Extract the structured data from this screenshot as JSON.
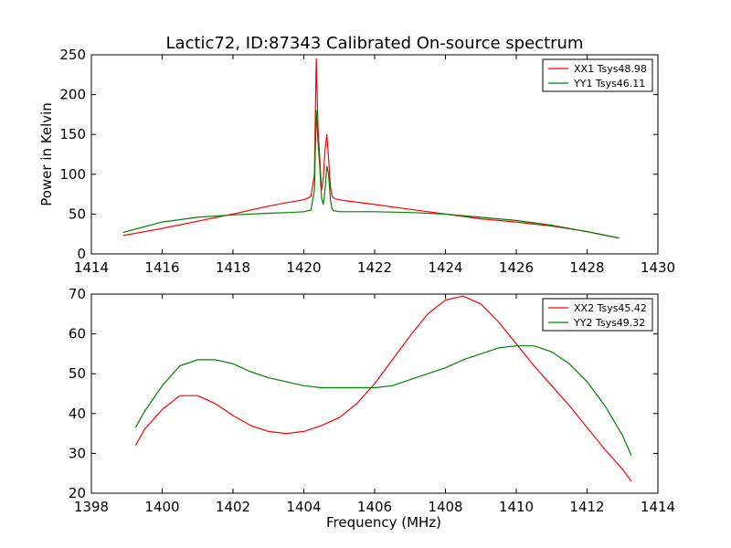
{
  "figure": {
    "title": "Lactic72, ID:87343 Calibrated On-source spectrum"
  },
  "chart_data": [
    {
      "type": "line",
      "ylabel": "Power in Kelvin",
      "xlabel": "",
      "xlim": [
        1414,
        1430
      ],
      "ylim": [
        0,
        250
      ],
      "xticks": [
        1414,
        1416,
        1418,
        1420,
        1422,
        1424,
        1426,
        1428,
        1430
      ],
      "yticks": [
        0,
        50,
        100,
        150,
        200,
        250
      ],
      "legend": "top-right",
      "grid": false,
      "series": [
        {
          "name": "XX1 Tsys48.98",
          "color": "#ff0000",
          "x": [
            1414.9,
            1416,
            1417,
            1418,
            1419,
            1419.6,
            1420.0,
            1420.2,
            1420.3,
            1420.35,
            1420.4,
            1420.45,
            1420.5,
            1420.55,
            1420.6,
            1420.65,
            1420.7,
            1420.75,
            1420.8,
            1420.85,
            1420.9,
            1421.0,
            1421.3,
            1422,
            1423,
            1424,
            1425,
            1426,
            1427,
            1428,
            1428.9
          ],
          "y": [
            23,
            32,
            41,
            50,
            60,
            65,
            68,
            72,
            100,
            245,
            160,
            120,
            80,
            95,
            130,
            150,
            120,
            85,
            72,
            70,
            69,
            68,
            66,
            62,
            56,
            50,
            44,
            40,
            35,
            28,
            20
          ]
        },
        {
          "name": "YY1 Tsys46.11",
          "color": "#008000",
          "x": [
            1414.9,
            1416,
            1417,
            1418,
            1419,
            1419.6,
            1420.0,
            1420.2,
            1420.3,
            1420.35,
            1420.4,
            1420.45,
            1420.5,
            1420.55,
            1420.6,
            1420.65,
            1420.7,
            1420.75,
            1420.8,
            1420.85,
            1420.9,
            1421.0,
            1421.3,
            1422,
            1423,
            1424,
            1425,
            1426,
            1427,
            1428,
            1428.9
          ],
          "y": [
            27,
            40,
            46,
            49,
            51,
            52,
            53,
            55,
            80,
            180,
            140,
            110,
            70,
            62,
            80,
            110,
            100,
            68,
            56,
            54,
            54,
            53,
            53,
            53,
            52,
            50,
            46,
            42,
            36,
            28,
            20
          ]
        }
      ]
    },
    {
      "type": "line",
      "xlabel": "Frequency (MHz)",
      "ylabel": "",
      "xlim": [
        1398,
        1414
      ],
      "ylim": [
        20,
        70
      ],
      "xticks": [
        1398,
        1400,
        1402,
        1404,
        1406,
        1408,
        1410,
        1412,
        1414
      ],
      "yticks": [
        20,
        30,
        40,
        50,
        60,
        70
      ],
      "legend": "top-right",
      "grid": false,
      "series": [
        {
          "name": "XX2 Tsys45.42",
          "color": "#ff0000",
          "x": [
            1399.25,
            1399.5,
            1400,
            1400.5,
            1401,
            1401.5,
            1402,
            1402.5,
            1403,
            1403.5,
            1404,
            1404.5,
            1405,
            1405.5,
            1406,
            1406.5,
            1407,
            1407.5,
            1408,
            1408.5,
            1409,
            1409.5,
            1410,
            1410.5,
            1411,
            1411.5,
            1412,
            1412.5,
            1413,
            1413.25
          ],
          "y": [
            32,
            36,
            41,
            44.5,
            44.5,
            42.5,
            39.5,
            37,
            35.5,
            35,
            35.5,
            37,
            39,
            42.5,
            47.5,
            53.5,
            59.5,
            65,
            68.5,
            69.5,
            67.5,
            63,
            57.5,
            52,
            47,
            42,
            36.5,
            31,
            26,
            23
          ]
        },
        {
          "name": "YY2 Tsys49.32",
          "color": "#008000",
          "x": [
            1399.25,
            1399.5,
            1400,
            1400.5,
            1401,
            1401.5,
            1402,
            1402.5,
            1403,
            1403.5,
            1404,
            1404.5,
            1405,
            1405.5,
            1406,
            1406.5,
            1407,
            1407.5,
            1408,
            1408.5,
            1409,
            1409.5,
            1410,
            1410.5,
            1411,
            1411.5,
            1412,
            1412.5,
            1413,
            1413.25
          ],
          "y": [
            36.5,
            40.5,
            47,
            52,
            53.5,
            53.5,
            52.5,
            50.5,
            49,
            48,
            47,
            46.5,
            46.5,
            46.5,
            46.5,
            47,
            48.5,
            50,
            51.5,
            53.5,
            55,
            56.5,
            57,
            57,
            55.5,
            52.5,
            48,
            42,
            34.5,
            29.5
          ]
        }
      ]
    }
  ]
}
